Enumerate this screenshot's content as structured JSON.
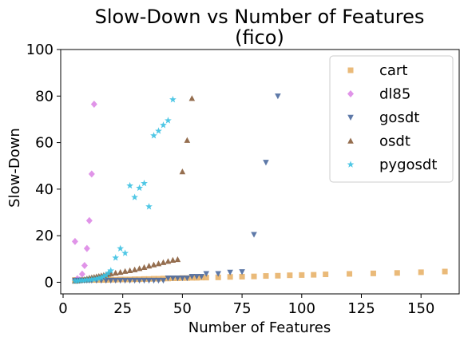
{
  "chart_data": {
    "type": "scatter",
    "title": "Slow-Down vs Number of Features",
    "subtitle": "(fico)",
    "xlabel": "Number of Features",
    "ylabel": "Slow-Down",
    "xlim": [
      -1,
      166
    ],
    "ylim": [
      -5,
      100
    ],
    "xticks": [
      0,
      25,
      50,
      75,
      100,
      125,
      150
    ],
    "yticks": [
      0,
      20,
      40,
      60,
      80,
      100
    ],
    "grid": false,
    "legend_position": "top-right",
    "series": [
      {
        "name": "cart",
        "marker": "square",
        "color": "#e8b26a",
        "points": [
          [
            5,
            1.0
          ],
          [
            6,
            1.0
          ],
          [
            7,
            1.0
          ],
          [
            8,
            1.0
          ],
          [
            9,
            1.0
          ],
          [
            10,
            1.0
          ],
          [
            11,
            1.0
          ],
          [
            12,
            1.0
          ],
          [
            13,
            1.0
          ],
          [
            14,
            1.0
          ],
          [
            15,
            1.0
          ],
          [
            16,
            1.0
          ],
          [
            17,
            1.0
          ],
          [
            18,
            1.0
          ],
          [
            19,
            1.1
          ],
          [
            20,
            1.1
          ],
          [
            22,
            1.1
          ],
          [
            24,
            1.2
          ],
          [
            26,
            1.2
          ],
          [
            28,
            1.2
          ],
          [
            30,
            1.3
          ],
          [
            32,
            1.3
          ],
          [
            34,
            1.4
          ],
          [
            36,
            1.4
          ],
          [
            38,
            1.5
          ],
          [
            40,
            1.5
          ],
          [
            42,
            1.6
          ],
          [
            44,
            1.6
          ],
          [
            46,
            1.7
          ],
          [
            48,
            1.7
          ],
          [
            50,
            1.8
          ],
          [
            52,
            1.8
          ],
          [
            54,
            1.9
          ],
          [
            56,
            1.9
          ],
          [
            58,
            2.0
          ],
          [
            60,
            2.0
          ],
          [
            65,
            2.1
          ],
          [
            70,
            2.3
          ],
          [
            75,
            2.4
          ],
          [
            80,
            2.5
          ],
          [
            85,
            2.7
          ],
          [
            90,
            2.8
          ],
          [
            95,
            3.0
          ],
          [
            100,
            3.1
          ],
          [
            105,
            3.2
          ],
          [
            110,
            3.4
          ],
          [
            120,
            3.6
          ],
          [
            130,
            3.8
          ],
          [
            140,
            4.0
          ],
          [
            150,
            4.3
          ],
          [
            160,
            4.6
          ]
        ]
      },
      {
        "name": "dl85",
        "marker": "diamond",
        "color": "#dd88e6",
        "points": [
          [
            5,
            17.5
          ],
          [
            6,
            1.5
          ],
          [
            7,
            1.0
          ],
          [
            8,
            3.5
          ],
          [
            9,
            7.2
          ],
          [
            10,
            14.5
          ],
          [
            11,
            26.5
          ],
          [
            12,
            46.5
          ],
          [
            13,
            76.5
          ]
        ]
      },
      {
        "name": "gosdt",
        "marker": "triangle-down",
        "color": "#4d6a9e",
        "points": [
          [
            5,
            0.8
          ],
          [
            6,
            0.8
          ],
          [
            7,
            0.8
          ],
          [
            8,
            0.8
          ],
          [
            9,
            0.8
          ],
          [
            10,
            0.8
          ],
          [
            11,
            0.8
          ],
          [
            12,
            0.8
          ],
          [
            14,
            0.8
          ],
          [
            16,
            0.8
          ],
          [
            18,
            0.8
          ],
          [
            20,
            0.8
          ],
          [
            22,
            0.8
          ],
          [
            24,
            0.8
          ],
          [
            26,
            0.8
          ],
          [
            28,
            0.8
          ],
          [
            30,
            0.8
          ],
          [
            32,
            0.8
          ],
          [
            34,
            0.8
          ],
          [
            36,
            0.8
          ],
          [
            38,
            0.8
          ],
          [
            40,
            0.8
          ],
          [
            42,
            0.8
          ],
          [
            44,
            1.8
          ],
          [
            46,
            1.8
          ],
          [
            48,
            1.8
          ],
          [
            50,
            1.8
          ],
          [
            52,
            1.8
          ],
          [
            54,
            2.5
          ],
          [
            56,
            2.5
          ],
          [
            58,
            2.5
          ],
          [
            60,
            3.7
          ],
          [
            65,
            3.7
          ],
          [
            70,
            4.3
          ],
          [
            75,
            4.5
          ],
          [
            80,
            20.5
          ],
          [
            85,
            51.5
          ],
          [
            90,
            80.0
          ]
        ]
      },
      {
        "name": "osdt",
        "marker": "triangle-up",
        "color": "#8a5e3c",
        "points": [
          [
            5,
            0.5
          ],
          [
            6,
            0.6
          ],
          [
            7,
            0.8
          ],
          [
            8,
            1.0
          ],
          [
            9,
            1.2
          ],
          [
            10,
            1.5
          ],
          [
            11,
            1.8
          ],
          [
            12,
            2.0
          ],
          [
            13,
            2.2
          ],
          [
            14,
            2.4
          ],
          [
            15,
            2.6
          ],
          [
            16,
            2.8
          ],
          [
            17,
            3.0
          ],
          [
            18,
            3.2
          ],
          [
            19,
            3.5
          ],
          [
            20,
            3.7
          ],
          [
            22,
            4.0
          ],
          [
            24,
            4.3
          ],
          [
            26,
            4.7
          ],
          [
            28,
            5.0
          ],
          [
            30,
            5.4
          ],
          [
            32,
            5.9
          ],
          [
            34,
            6.4
          ],
          [
            36,
            7.0
          ],
          [
            38,
            7.5
          ],
          [
            40,
            8.0
          ],
          [
            42,
            8.5
          ],
          [
            44,
            9.0
          ],
          [
            46,
            9.5
          ],
          [
            48,
            9.8
          ],
          [
            50,
            47.5
          ],
          [
            52,
            61.0
          ],
          [
            54,
            79.0
          ]
        ]
      },
      {
        "name": "pygosdt",
        "marker": "star",
        "color": "#3cc1e2",
        "points": [
          [
            5,
            0.5
          ],
          [
            6,
            0.6
          ],
          [
            7,
            0.7
          ],
          [
            8,
            0.8
          ],
          [
            9,
            0.9
          ],
          [
            10,
            1.0
          ],
          [
            11,
            1.1
          ],
          [
            12,
            1.2
          ],
          [
            13,
            1.3
          ],
          [
            14,
            1.5
          ],
          [
            15,
            1.7
          ],
          [
            16,
            2.0
          ],
          [
            17,
            2.5
          ],
          [
            18,
            3.0
          ],
          [
            19,
            4.0
          ],
          [
            20,
            5.0
          ],
          [
            22,
            10.5
          ],
          [
            24,
            14.5
          ],
          [
            26,
            12.5
          ],
          [
            28,
            41.5
          ],
          [
            30,
            36.5
          ],
          [
            32,
            40.5
          ],
          [
            34,
            42.5
          ],
          [
            36,
            32.5
          ],
          [
            38,
            63.0
          ],
          [
            40,
            65.0
          ],
          [
            42,
            67.5
          ],
          [
            44,
            69.5
          ],
          [
            46,
            78.5
          ]
        ]
      }
    ]
  }
}
